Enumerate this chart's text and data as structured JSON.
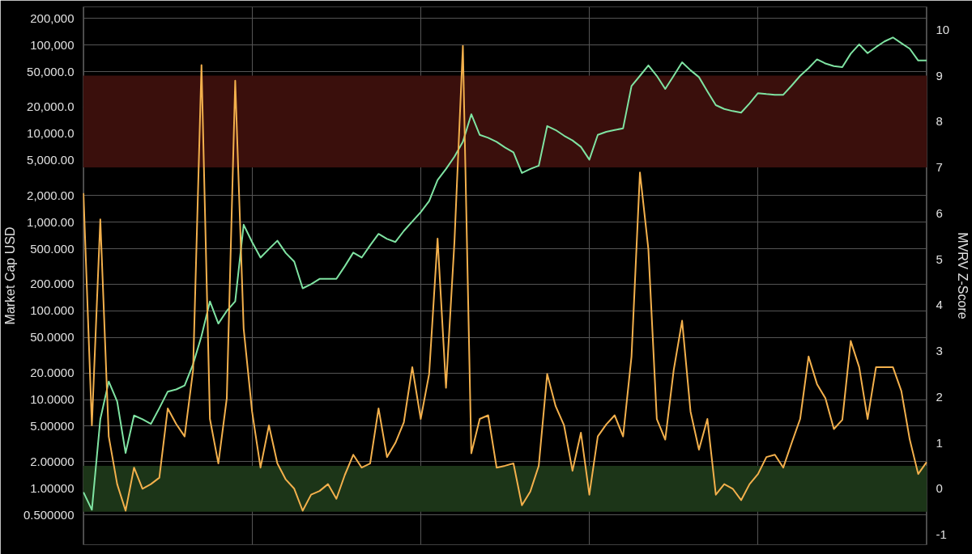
{
  "chart_data": {
    "type": "line",
    "ylabel": "Market Cap USD",
    "y2label": "MVRV Z-Score",
    "log": "y",
    "grid": true,
    "tick_labels": "y",
    "categories": [
      null,
      null,
      null,
      null,
      null,
      null,
      null,
      null,
      null,
      null,
      null,
      null,
      null,
      null,
      null,
      null,
      null,
      null,
      null,
      null,
      null,
      null,
      null,
      null,
      null,
      null,
      null,
      null,
      null,
      null,
      null,
      null,
      null,
      null,
      null,
      null,
      null,
      null,
      null,
      null,
      null,
      null,
      null,
      null,
      null,
      null,
      null,
      null,
      null,
      null,
      null,
      null,
      null,
      null,
      null,
      null,
      null,
      null,
      null,
      null,
      null,
      null,
      null,
      null,
      null,
      null,
      null,
      null,
      null,
      null,
      null,
      null,
      null,
      null,
      null,
      null,
      null,
      null,
      null,
      null,
      null,
      null,
      null,
      null,
      null,
      null,
      null,
      null,
      null,
      null,
      null,
      null,
      null,
      null,
      null,
      null,
      null,
      null,
      null,
      null,
      null
    ],
    "ylim": [
      0.23,
      270000
    ],
    "yticks": [
      {
        "value": 200000,
        "label": "200,000"
      },
      {
        "value": 100000,
        "label": "100,000"
      },
      {
        "value": 50000,
        "label": "50,000.0"
      },
      {
        "value": 20000,
        "label": "20,000.0"
      },
      {
        "value": 10000,
        "label": "10,000.0"
      },
      {
        "value": 5000,
        "label": "5,000.00"
      },
      {
        "value": 2000,
        "label": "2,000.00"
      },
      {
        "value": 1000,
        "label": "1,000.00"
      },
      {
        "value": 500,
        "label": "500.000"
      },
      {
        "value": 200,
        "label": "200.000"
      },
      {
        "value": 100,
        "label": "100.000"
      },
      {
        "value": 50,
        "label": "50.0000"
      },
      {
        "value": 20,
        "label": "20.0000"
      },
      {
        "value": 10,
        "label": "10.0000"
      },
      {
        "value": 5,
        "label": "5.00000"
      },
      {
        "value": 2,
        "label": "2.00000"
      },
      {
        "value": 1,
        "label": "1.00000"
      },
      {
        "value": 0.5,
        "label": "0.500000"
      }
    ],
    "y2lim": [
      -1.22,
      10.5
    ],
    "y2ticks": [
      -1,
      0,
      1,
      2,
      3,
      4,
      5,
      6,
      7,
      8,
      9,
      10
    ],
    "bands": [
      {
        "axis": "y2",
        "from": 7,
        "to": 9,
        "color": "#3a0f0c"
      },
      {
        "axis": "y2",
        "from": -0.5,
        "to": 0.5,
        "color": "#1c3518"
      }
    ],
    "series": [
      {
        "color": "#7fe3a2",
        "values": [
          0.9,
          0.57,
          6,
          16,
          9.5,
          2.5,
          6.6,
          6,
          5.3,
          8,
          12.3,
          13,
          14.4,
          25,
          52,
          128,
          72,
          100,
          128,
          940,
          600,
          400,
          500,
          620,
          450,
          360,
          180,
          200,
          230,
          230,
          230,
          320,
          455,
          400,
          550,
          740,
          650,
          600,
          800,
          1020,
          1300,
          1740,
          3000,
          4000,
          5500,
          8100,
          16600,
          9700,
          9000,
          8100,
          7000,
          6150,
          3600,
          4000,
          4350,
          12200,
          11000,
          9500,
          8400,
          7100,
          5100,
          9700,
          10500,
          11000,
          11500,
          34500,
          45000,
          59000,
          45000,
          32000,
          45000,
          64000,
          52000,
          43500,
          30000,
          21000,
          19000,
          18000,
          17300,
          22000,
          28700,
          28000,
          27500,
          27500,
          35000,
          45000,
          55000,
          69000,
          62000,
          58000,
          56500,
          80000,
          102000,
          81000,
          95000,
          110000,
          122000,
          105000,
          91000,
          67000,
          67000
        ]
      },
      {
        "color": "#f3b04c",
        "axis": "y2",
        "values": [
          6.44,
          1.38,
          5.87,
          1.14,
          0.1,
          -0.48,
          0.46,
          0,
          0.1,
          0.24,
          1.75,
          1.41,
          1.14,
          2.58,
          9.23,
          1.52,
          0.55,
          1.97,
          8.89,
          3.49,
          1.68,
          0.46,
          1.38,
          0.55,
          0.2,
          0,
          -0.48,
          -0.13,
          -0.05,
          0.1,
          -0.22,
          0.3,
          0.74,
          0.46,
          0.55,
          1.75,
          0.69,
          1,
          1.45,
          2.65,
          1.52,
          2.5,
          5.45,
          2.2,
          5.38,
          9.65,
          0.77,
          1.52,
          1.6,
          0.46,
          0.5,
          0.55,
          -0.36,
          -0.06,
          0.5,
          2.5,
          1.8,
          1.38,
          0.39,
          1.22,
          -0.13,
          1.14,
          1.4,
          1.6,
          1.14,
          2.88,
          6.89,
          5.22,
          1.52,
          1.07,
          2.58,
          3.66,
          1.68,
          0.85,
          1.52,
          -0.13,
          0.1,
          0,
          -0.25,
          0.1,
          0.32,
          0.69,
          0.74,
          0.46,
          1,
          1.52,
          2.88,
          2.28,
          1.97,
          1.3,
          1.5,
          3.22,
          2.65,
          1.52,
          2.65,
          2.65,
          2.65,
          2.13,
          1.07,
          0.32,
          0.58
        ]
      }
    ]
  }
}
